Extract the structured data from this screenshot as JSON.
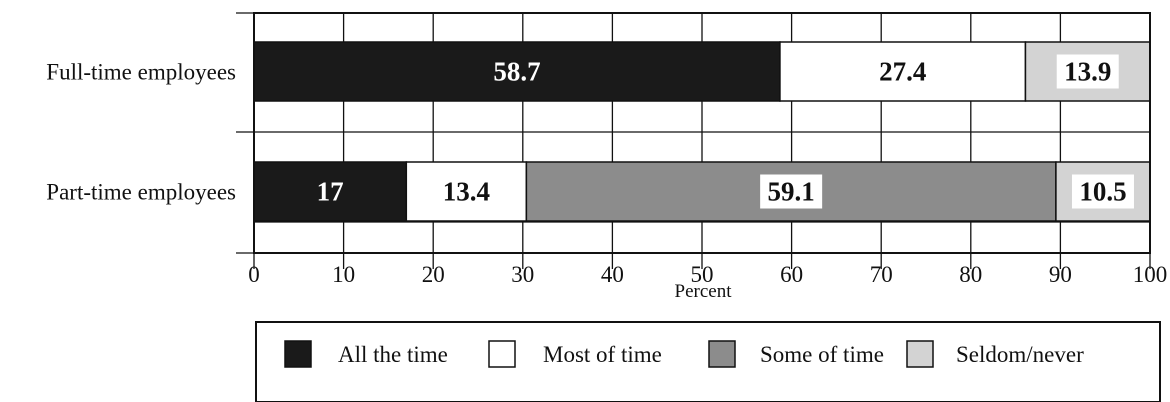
{
  "chart_data": {
    "type": "bar",
    "stacked": true,
    "orientation": "horizontal",
    "categories": [
      "Full-time employees",
      "Part-time employees"
    ],
    "series": [
      {
        "name": "All the time",
        "values": [
          58.7,
          17
        ],
        "color": "#1a1a1a"
      },
      {
        "name": "Most of time",
        "values": [
          27.4,
          13.4
        ],
        "color": "#ffffff"
      },
      {
        "name": "Some of time",
        "values": [
          0,
          59.1
        ],
        "color": "#8c8c8c"
      },
      {
        "name": "Seldom/never",
        "values": [
          13.9,
          10.5
        ],
        "color": "#d3d3d3"
      }
    ],
    "data_labels": [
      [
        "58.7",
        "27.4",
        "",
        "13.9"
      ],
      [
        "17",
        "13.4",
        "59.1",
        "10.5"
      ]
    ],
    "xlabel": "Percent",
    "ylabel": "",
    "xlim": [
      0,
      100
    ],
    "xticks": [
      "0",
      "10",
      "20",
      "30",
      "40",
      "50",
      "60",
      "70",
      "80",
      "90",
      "100"
    ],
    "grid": true,
    "legend_position": "bottom"
  }
}
